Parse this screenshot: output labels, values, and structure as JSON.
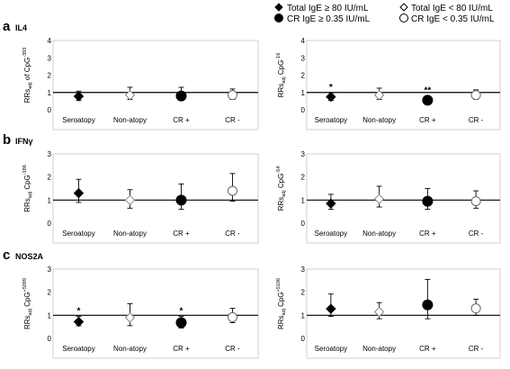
{
  "legend": [
    {
      "marker": "diamond",
      "filled": true,
      "label": "Total IgE ≥ 80 IU/mL"
    },
    {
      "marker": "diamond",
      "filled": false,
      "label": "Total IgE < 80 IU/mL"
    },
    {
      "marker": "circle",
      "filled": true,
      "label": "CR IgE ≥ 0.35 IU/mL"
    },
    {
      "marker": "circle",
      "filled": false,
      "label": "CR IgE < 0.35 IU/mL"
    }
  ],
  "rows": [
    {
      "letter": "a",
      "gene": "IL4"
    },
    {
      "letter": "b",
      "gene": "IFNγ"
    },
    {
      "letter": "c",
      "gene": "NOS2A"
    }
  ],
  "chart_data": [
    {
      "type": "scatter",
      "row": "a",
      "side": "left",
      "ylabel": {
        "base": "RRs",
        "sub": "adj",
        "mid": " of CpG",
        "sup": "-393"
      },
      "ylim": [
        0,
        4
      ],
      "yticks": [
        0,
        1,
        2,
        3,
        4
      ],
      "reference_line": 1,
      "categories": [
        "Seroatopy",
        "Non-atopy",
        "CR +",
        "CR -"
      ],
      "points": [
        {
          "category": "Seroatopy",
          "marker": "diamond",
          "filled": true,
          "value": 0.78,
          "ci": [
            0.55,
            1.08
          ],
          "annotation": ""
        },
        {
          "category": "Non-atopy",
          "marker": "diamond",
          "filled": false,
          "value": 0.85,
          "ci": [
            0.6,
            1.3
          ],
          "annotation": ""
        },
        {
          "category": "CR +",
          "marker": "circle",
          "filled": true,
          "value": 0.8,
          "ci": [
            0.55,
            1.3
          ],
          "annotation": ""
        },
        {
          "category": "CR -",
          "marker": "circle",
          "filled": false,
          "value": 0.85,
          "ci": [
            0.6,
            1.2
          ],
          "annotation": ""
        }
      ]
    },
    {
      "type": "scatter",
      "row": "a",
      "side": "right",
      "ylabel": {
        "base": "RRs",
        "sub": "adj",
        "mid": " CpG",
        "sup": "-16"
      },
      "ylim": [
        0,
        4
      ],
      "yticks": [
        0,
        1,
        2,
        3,
        4
      ],
      "reference_line": 1,
      "categories": [
        "Seroatopy",
        "Non-atopy",
        "CR +",
        "CR -"
      ],
      "points": [
        {
          "category": "Seroatopy",
          "marker": "diamond",
          "filled": true,
          "value": 0.75,
          "ci": [
            0.55,
            1.0
          ],
          "annotation": "*"
        },
        {
          "category": "Non-atopy",
          "marker": "diamond",
          "filled": false,
          "value": 0.85,
          "ci": [
            0.6,
            1.25
          ],
          "annotation": ""
        },
        {
          "category": "CR +",
          "marker": "circle",
          "filled": true,
          "value": 0.55,
          "ci": [
            0.4,
            0.8
          ],
          "annotation": "**"
        },
        {
          "category": "CR -",
          "marker": "circle",
          "filled": false,
          "value": 0.85,
          "ci": [
            0.6,
            1.15
          ],
          "annotation": ""
        }
      ]
    },
    {
      "type": "scatter",
      "row": "b",
      "side": "left",
      "ylabel": {
        "base": "RRs",
        "sub": "adj",
        "mid": " CpG",
        "sup": "-186"
      },
      "ylim": [
        0,
        3
      ],
      "yticks": [
        0,
        1,
        2,
        3
      ],
      "reference_line": 1,
      "categories": [
        "Seroatopy",
        "Non-atopy",
        "CR +",
        "CR -"
      ],
      "points": [
        {
          "category": "Seroatopy",
          "marker": "diamond",
          "filled": true,
          "value": 1.3,
          "ci": [
            0.9,
            1.9
          ],
          "annotation": ""
        },
        {
          "category": "Non-atopy",
          "marker": "diamond",
          "filled": false,
          "value": 1.0,
          "ci": [
            0.65,
            1.45
          ],
          "annotation": ""
        },
        {
          "category": "CR +",
          "marker": "circle",
          "filled": true,
          "value": 1.0,
          "ci": [
            0.6,
            1.7
          ],
          "annotation": ""
        },
        {
          "category": "CR -",
          "marker": "circle",
          "filled": false,
          "value": 1.4,
          "ci": [
            0.95,
            2.15
          ],
          "annotation": ""
        }
      ]
    },
    {
      "type": "scatter",
      "row": "b",
      "side": "right",
      "ylabel": {
        "base": "RRs",
        "sub": "adj",
        "mid": " CpG",
        "sup": "-54"
      },
      "ylim": [
        0,
        3
      ],
      "yticks": [
        0,
        1,
        2,
        3
      ],
      "reference_line": 1,
      "categories": [
        "Seroatopy",
        "Non-atopy",
        "CR +",
        "CR -"
      ],
      "points": [
        {
          "category": "Seroatopy",
          "marker": "diamond",
          "filled": true,
          "value": 0.85,
          "ci": [
            0.6,
            1.25
          ],
          "annotation": ""
        },
        {
          "category": "Non-atopy",
          "marker": "diamond",
          "filled": false,
          "value": 1.05,
          "ci": [
            0.7,
            1.6
          ],
          "annotation": ""
        },
        {
          "category": "CR +",
          "marker": "circle",
          "filled": true,
          "value": 0.95,
          "ci": [
            0.6,
            1.5
          ],
          "annotation": ""
        },
        {
          "category": "CR -",
          "marker": "circle",
          "filled": false,
          "value": 0.95,
          "ci": [
            0.65,
            1.4
          ],
          "annotation": ""
        }
      ]
    },
    {
      "type": "scatter",
      "row": "c",
      "side": "left",
      "ylabel": {
        "base": "RRs",
        "sub": "adj",
        "mid": " CpG",
        "sup": "+5099"
      },
      "ylim": [
        0,
        3
      ],
      "yticks": [
        0,
        1,
        2,
        3
      ],
      "reference_line": 1,
      "categories": [
        "Seroatopy",
        "Non-atopy",
        "CR +",
        "CR -"
      ],
      "points": [
        {
          "category": "Seroatopy",
          "marker": "diamond",
          "filled": true,
          "value": 0.72,
          "ci": [
            0.55,
            0.95
          ],
          "annotation": "*"
        },
        {
          "category": "Non-atopy",
          "marker": "diamond",
          "filled": false,
          "value": 0.9,
          "ci": [
            0.55,
            1.5
          ],
          "annotation": ""
        },
        {
          "category": "CR +",
          "marker": "circle",
          "filled": true,
          "value": 0.68,
          "ci": [
            0.45,
            0.95
          ],
          "annotation": "*"
        },
        {
          "category": "CR -",
          "marker": "circle",
          "filled": false,
          "value": 0.92,
          "ci": [
            0.68,
            1.3
          ],
          "annotation": ""
        }
      ]
    },
    {
      "type": "scatter",
      "row": "c",
      "side": "right",
      "ylabel": {
        "base": "RRs",
        "sub": "adj",
        "mid": " CpG",
        "sup": "+5106"
      },
      "ylim": [
        0,
        3
      ],
      "yticks": [
        0,
        1,
        2,
        3
      ],
      "reference_line": 1,
      "categories": [
        "Seroatopy",
        "Non-atopy",
        "CR +",
        "CR -"
      ],
      "points": [
        {
          "category": "Seroatopy",
          "marker": "diamond",
          "filled": true,
          "value": 1.28,
          "ci": [
            0.95,
            1.92
          ],
          "annotation": ""
        },
        {
          "category": "Non-atopy",
          "marker": "diamond",
          "filled": false,
          "value": 1.15,
          "ci": [
            0.85,
            1.55
          ],
          "annotation": ""
        },
        {
          "category": "CR +",
          "marker": "circle",
          "filled": true,
          "value": 1.45,
          "ci": [
            0.85,
            2.55
          ],
          "annotation": ""
        },
        {
          "category": "CR -",
          "marker": "circle",
          "filled": false,
          "value": 1.3,
          "ci": [
            1.0,
            1.7
          ],
          "annotation": ""
        }
      ]
    }
  ]
}
